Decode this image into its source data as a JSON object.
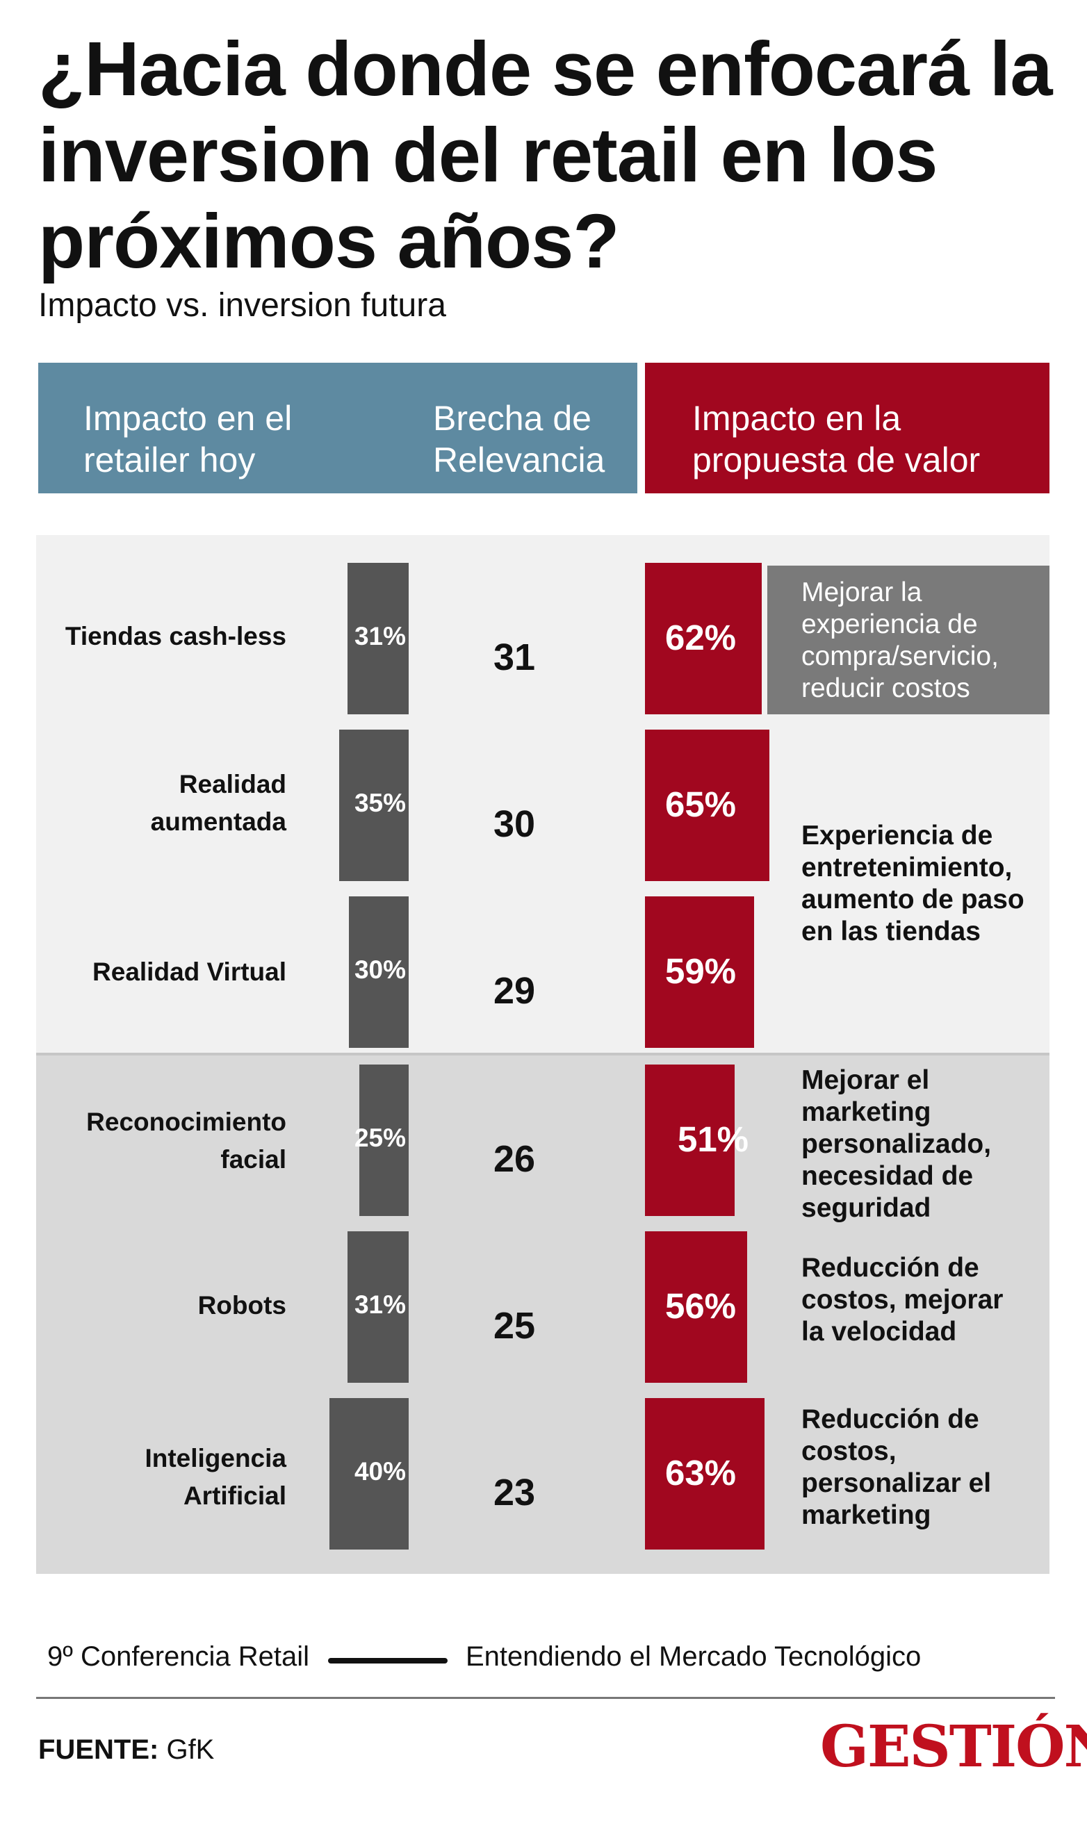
{
  "title": "¿Hacia donde se enfocará la inversion del retail en los próximos años?",
  "subtitle": "Impacto vs. inversion futura",
  "headers": {
    "impact_today": "Impacto en el retailer hoy",
    "gap": "Brecha de Relevancia",
    "value_prop": "Impacto en la propuesta de valor"
  },
  "chart_data": {
    "type": "bar",
    "title": "¿Hacia donde se enfocará la inversion del retail en los próximos años?",
    "subtitle": "Impacto vs. inversion futura",
    "categories": [
      "Tiendas cash-less",
      "Realidad aumentada",
      "Realidad Virtual",
      "Reconocimiento facial",
      "Robots",
      "Inteligencia Artificial"
    ],
    "series": [
      {
        "name": "Impacto en el retailer hoy",
        "values": [
          31,
          35,
          30,
          25,
          31,
          40
        ],
        "unit": "%"
      },
      {
        "name": "Brecha de Relevancia",
        "values": [
          31,
          30,
          29,
          26,
          25,
          23
        ]
      },
      {
        "name": "Impacto en la propuesta de valor",
        "values": [
          62,
          65,
          59,
          51,
          56,
          63
        ],
        "unit": "%"
      }
    ],
    "labels": {
      "impact_today": [
        "31%",
        "35%",
        "30%",
        "25%",
        "31%",
        "40%"
      ],
      "gap": [
        "31",
        "30",
        "29",
        "26",
        "25",
        "23"
      ],
      "value_prop": [
        "62%",
        "65%",
        "59%",
        "51%",
        "56%",
        "63%"
      ]
    },
    "descriptions": [
      "Mejorar la experiencia de compra/servicio, reducir costos",
      "Experiencia de entretenimiento, aumento de paso en las tiendas",
      "Mejorar el marketing personalizado, necesidad de seguridad",
      "Reducción de costos, mejorar la velocidad",
      "Reducción de costos, personalizar el marketing"
    ]
  },
  "footer": {
    "left": "9º Conferencia Retail",
    "right": "Entendiendo el Mercado Tecnológico",
    "source_label": "FUENTE:",
    "source_value": "GfK",
    "logo": "GESTIÓN"
  },
  "colors": {
    "blue_header": "#5e8aa1",
    "red": "#a1071f",
    "gray_bar": "#555555",
    "panel_light": "#f1f1f1",
    "panel_dark": "#d9d9d9",
    "logo_red": "#c0101e"
  }
}
